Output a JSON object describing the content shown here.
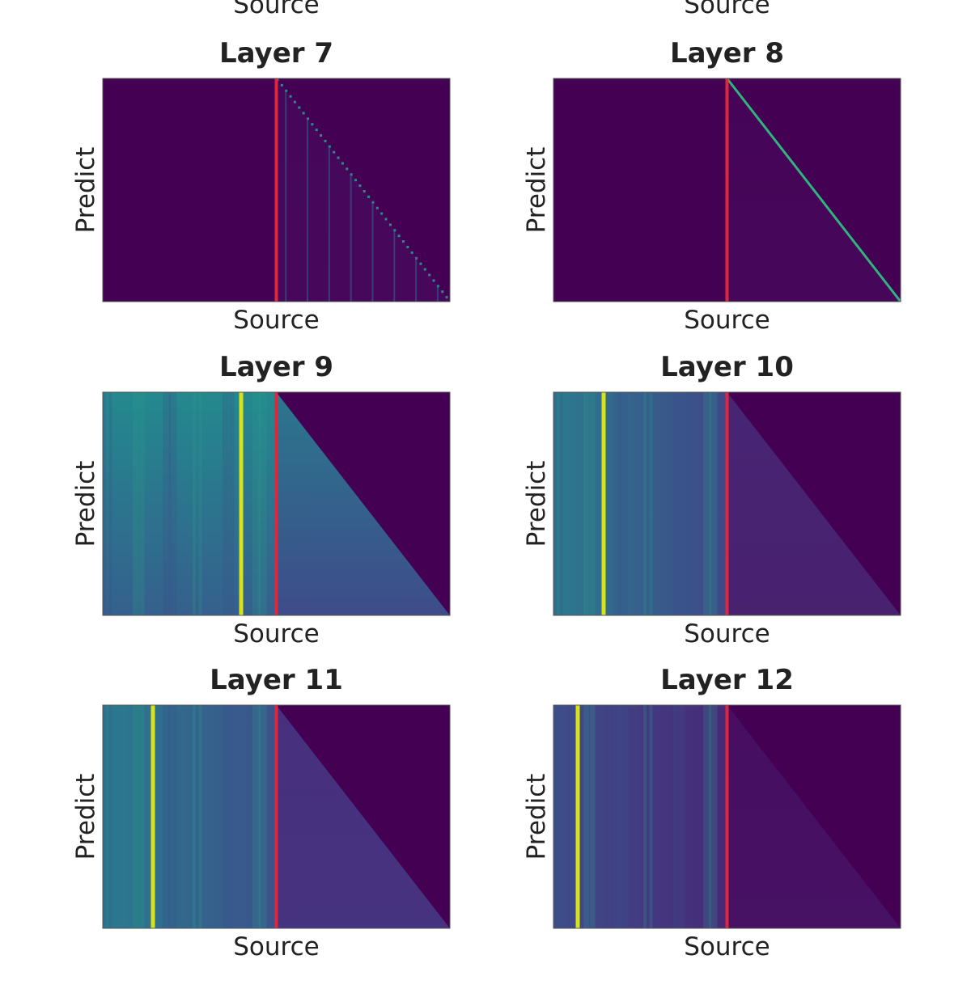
{
  "top_labels": [
    "Source",
    "Source"
  ],
  "panels": [
    {
      "title": "Layer 7",
      "xlabel": "Source",
      "ylabel": "Predict"
    },
    {
      "title": "Layer 8",
      "xlabel": "Source",
      "ylabel": "Predict"
    },
    {
      "title": "Layer 9",
      "xlabel": "Source",
      "ylabel": "Predict"
    },
    {
      "title": "Layer 10",
      "xlabel": "Source",
      "ylabel": "Predict"
    },
    {
      "title": "Layer 11",
      "xlabel": "Source",
      "ylabel": "Predict"
    },
    {
      "title": "Layer 12",
      "xlabel": "Source",
      "ylabel": "Predict"
    }
  ]
}
